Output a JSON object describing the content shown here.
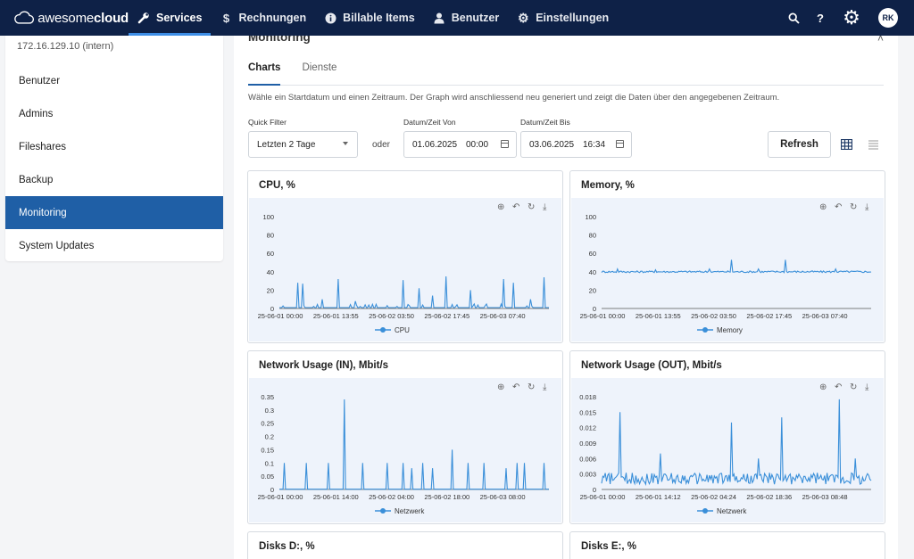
{
  "brand": {
    "light": "awesome",
    "bold": "cloud"
  },
  "nav": [
    {
      "label": "Services",
      "icon": "wrench-icon"
    },
    {
      "label": "Rechnungen",
      "icon": "dollar-icon"
    },
    {
      "label": "Billable Items",
      "icon": "info-icon"
    },
    {
      "label": "Benutzer",
      "icon": "user-icon"
    },
    {
      "label": "Einstellungen",
      "icon": "gear-icon"
    }
  ],
  "user_initials": "RK",
  "help_label": "?",
  "sidebar": {
    "ip": "172.16.129.10 (intern)",
    "items": [
      "Benutzer",
      "Admins",
      "Fileshares",
      "Backup",
      "Monitoring",
      "System Updates"
    ],
    "active": "Monitoring"
  },
  "page": {
    "title": "Monitoring",
    "tabs": [
      "Charts",
      "Dienste"
    ],
    "active_tab": "Charts",
    "hint": "Wähle ein Startdatum und einen Zeitraum. Der Graph wird anschliessend neu generiert und zeigt die Daten über den angegebenen Zeitraum."
  },
  "filters": {
    "quick_label": "Quick Filter",
    "quick_value": "Letzten 2 Tage",
    "oder": "oder",
    "from_label": "Datum/Zeit Von",
    "from_date": "01.06.2025",
    "from_time": "00:00",
    "to_label": "Datum/Zeit Bis",
    "to_date": "03.06.2025",
    "to_time": "16:34",
    "refresh": "Refresh"
  },
  "colors": {
    "navbar": "#0e2147",
    "accent": "#1f5fa6",
    "series": "#3a8fd9",
    "plot_bg": "#eef3fb"
  },
  "chart_data": [
    {
      "type": "line",
      "title": "CPU, %",
      "legend": "CPU",
      "ylim": [
        0,
        100
      ],
      "yticks": [
        "0",
        "20",
        "40",
        "60",
        "80",
        "100"
      ],
      "xticks": [
        "25-06-01 00:00",
        "25-06-01 13:55",
        "25-06-02 03:50",
        "25-06-02 17:45",
        "25-06-03 07:40"
      ],
      "baseline": 1,
      "spikes": [
        [
          0.07,
          28
        ],
        [
          0.085,
          27
        ],
        [
          0.16,
          10
        ],
        [
          0.22,
          32
        ],
        [
          0.28,
          8
        ],
        [
          0.32,
          4
        ],
        [
          0.46,
          31
        ],
        [
          0.52,
          22
        ],
        [
          0.57,
          14
        ],
        [
          0.62,
          35
        ],
        [
          0.66,
          4
        ],
        [
          0.71,
          20
        ],
        [
          0.83,
          32
        ],
        [
          0.87,
          28
        ],
        [
          0.93,
          10
        ],
        [
          0.98,
          34
        ]
      ]
    },
    {
      "type": "line",
      "title": "Memory, %",
      "legend": "Memory",
      "ylim": [
        0,
        100
      ],
      "yticks": [
        "0",
        "20",
        "40",
        "60",
        "80",
        "100"
      ],
      "xticks": [
        "25-06-01 00:00",
        "25-06-01 13:55",
        "25-06-02 03:50",
        "25-06-02 17:45",
        "25-06-03 07:40"
      ],
      "baseline": 40,
      "spikes": [
        [
          0.06,
          43
        ],
        [
          0.2,
          42
        ],
        [
          0.4,
          43
        ],
        [
          0.48,
          53
        ],
        [
          0.58,
          43
        ],
        [
          0.68,
          53
        ],
        [
          0.87,
          43
        ]
      ]
    },
    {
      "type": "line",
      "title": "Network Usage (IN), Mbit/s",
      "legend": "Netzwerk",
      "ylim": [
        0,
        0.35
      ],
      "yticks": [
        "0",
        "0.05",
        "0.1",
        "0.15",
        "0.2",
        "0.25",
        "0.3",
        "0.35"
      ],
      "xticks": [
        "25-06-01 00:00",
        "25-06-01 14:00",
        "25-06-02 04:00",
        "25-06-02 18:00",
        "25-06-03 08:00"
      ],
      "baseline": 0.001,
      "spikes": [
        [
          0.02,
          0.1
        ],
        [
          0.1,
          0.1
        ],
        [
          0.18,
          0.1
        ],
        [
          0.24,
          0.34
        ],
        [
          0.31,
          0.1
        ],
        [
          0.4,
          0.1
        ],
        [
          0.46,
          0.1
        ],
        [
          0.49,
          0.08
        ],
        [
          0.53,
          0.1
        ],
        [
          0.57,
          0.08
        ],
        [
          0.64,
          0.15
        ],
        [
          0.7,
          0.1
        ],
        [
          0.76,
          0.1
        ],
        [
          0.84,
          0.08
        ],
        [
          0.88,
          0.1
        ],
        [
          0.91,
          0.1
        ],
        [
          0.98,
          0.1
        ]
      ]
    },
    {
      "type": "line",
      "title": "Network Usage (OUT), Mbit/s",
      "legend": "Netzwerk",
      "ylim": [
        0,
        0.018
      ],
      "yticks": [
        "0",
        "0.003",
        "0.006",
        "0.009",
        "0.012",
        "0.015",
        "0.018"
      ],
      "xticks": [
        "25-06-01 00:00",
        "25-06-01 14:12",
        "25-06-02 04:24",
        "25-06-02 18:36",
        "25-06-03 08:48"
      ],
      "baseline": 0.0025,
      "spikes": [
        [
          0.07,
          0.015
        ],
        [
          0.22,
          0.007
        ],
        [
          0.48,
          0.013
        ],
        [
          0.58,
          0.006
        ],
        [
          0.67,
          0.014
        ],
        [
          0.88,
          0.0175
        ],
        [
          0.94,
          0.006
        ]
      ]
    },
    {
      "type": "line",
      "title": "Disks D:, %"
    },
    {
      "type": "line",
      "title": "Disks E:, %"
    }
  ]
}
